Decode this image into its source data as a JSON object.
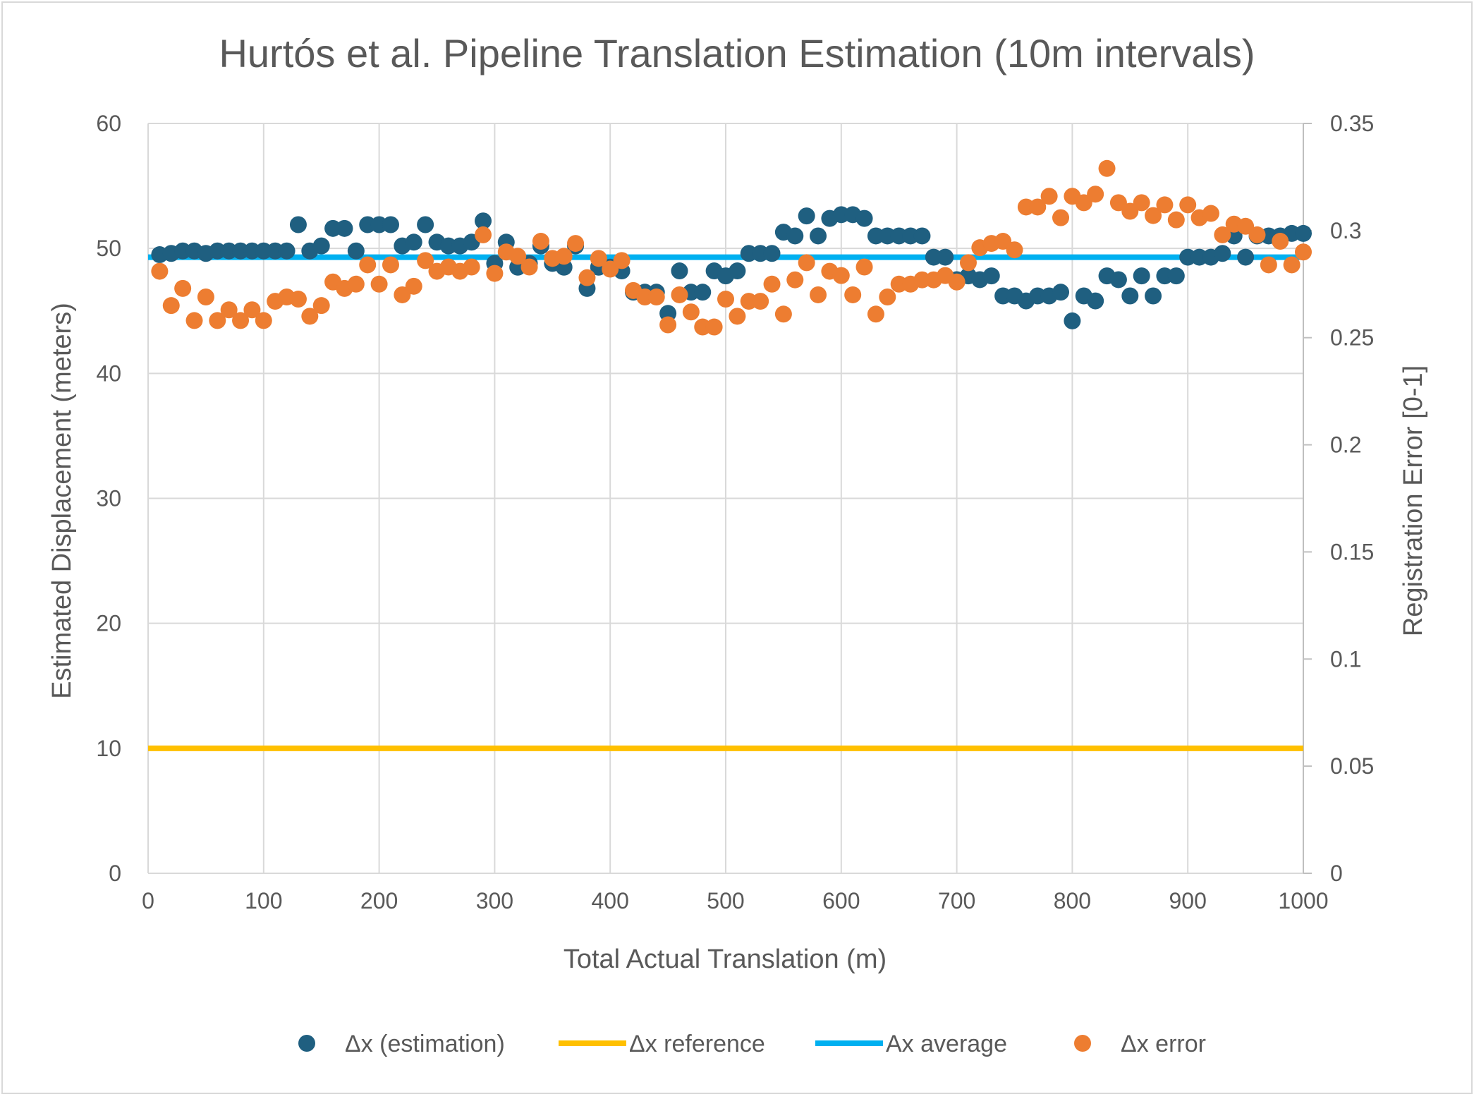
{
  "chart_data": {
    "type": "scatter",
    "title": "Hurtós et al. Pipeline Translation Estimation (10m intervals)",
    "xlabel": "Total Actual Translation (m)",
    "ylabel": "Estimated Displacement (meters)",
    "y2label": "Registration Error [0-1]",
    "xlim": [
      0,
      1000
    ],
    "ylim": [
      0,
      60
    ],
    "y2lim": [
      0,
      0.35
    ],
    "xticks": [
      "0",
      "100",
      "200",
      "300",
      "400",
      "500",
      "600",
      "700",
      "800",
      "900",
      "1000"
    ],
    "yticks": [
      "0",
      "10",
      "20",
      "30",
      "40",
      "50",
      "60"
    ],
    "y2ticks": [
      "0",
      "0.05",
      "0.1",
      "0.15",
      "0.2",
      "0.25",
      "0.3",
      "0.35"
    ],
    "grid": true,
    "legend_position": "bottom",
    "x": [
      10,
      20,
      30,
      40,
      50,
      60,
      70,
      80,
      90,
      100,
      110,
      120,
      130,
      140,
      150,
      160,
      170,
      180,
      190,
      200,
      210,
      220,
      230,
      240,
      250,
      260,
      270,
      280,
      290,
      300,
      310,
      320,
      330,
      340,
      350,
      360,
      370,
      380,
      390,
      400,
      410,
      420,
      430,
      440,
      450,
      460,
      470,
      480,
      490,
      500,
      510,
      520,
      530,
      540,
      550,
      560,
      570,
      580,
      590,
      600,
      610,
      620,
      630,
      640,
      650,
      660,
      670,
      680,
      690,
      700,
      710,
      720,
      730,
      740,
      750,
      760,
      770,
      780,
      790,
      800,
      810,
      820,
      830,
      840,
      850,
      860,
      870,
      880,
      890,
      900,
      910,
      920,
      930,
      940,
      950,
      960,
      970,
      980,
      990,
      1000
    ],
    "series": [
      {
        "name": "Δx (estimation)",
        "kind": "scatter",
        "axis": "left",
        "color": "#1f5f80",
        "values": [
          49.5,
          49.6,
          49.8,
          49.8,
          49.6,
          49.8,
          49.8,
          49.8,
          49.8,
          49.8,
          49.8,
          49.8,
          51.9,
          49.8,
          50.2,
          51.6,
          51.6,
          49.8,
          51.9,
          51.9,
          51.9,
          50.2,
          50.5,
          51.9,
          50.5,
          50.2,
          50.2,
          50.5,
          52.2,
          48.8,
          50.5,
          48.5,
          48.8,
          50.2,
          48.8,
          48.5,
          50.2,
          46.8,
          48.5,
          48.5,
          48.2,
          46.5,
          46.5,
          46.5,
          44.8,
          48.2,
          46.5,
          46.5,
          48.2,
          47.8,
          48.2,
          49.6,
          49.6,
          49.6,
          51.3,
          51.0,
          52.6,
          51.0,
          52.4,
          52.7,
          52.7,
          52.4,
          51.0,
          51.0,
          51.0,
          51.0,
          51.0,
          49.3,
          49.3,
          47.5,
          47.8,
          47.5,
          47.8,
          46.2,
          46.2,
          45.8,
          46.2,
          46.2,
          46.5,
          44.2,
          46.2,
          45.8,
          47.8,
          47.5,
          46.2,
          47.8,
          46.2,
          47.8,
          47.8,
          49.3,
          49.3,
          49.3,
          49.6,
          51.0,
          49.3,
          51.0,
          51.0,
          51.0,
          51.2,
          51.2
        ]
      },
      {
        "name": "Δx reference",
        "kind": "line",
        "axis": "left",
        "color": "#ffc000",
        "value": 10
      },
      {
        "name": "Ax average",
        "kind": "line",
        "axis": "left",
        "color": "#00b0f0",
        "value": 49.3
      },
      {
        "name": "Δx error",
        "kind": "scatter",
        "axis": "right",
        "color": "#ed7d31",
        "values": [
          0.281,
          0.265,
          0.273,
          0.258,
          0.269,
          0.258,
          0.263,
          0.258,
          0.263,
          0.258,
          0.267,
          0.269,
          0.268,
          0.26,
          0.265,
          0.276,
          0.273,
          0.275,
          0.284,
          0.275,
          0.284,
          0.27,
          0.274,
          0.286,
          0.281,
          0.283,
          0.281,
          0.283,
          0.298,
          0.28,
          0.29,
          0.288,
          0.283,
          0.295,
          0.287,
          0.288,
          0.294,
          0.278,
          0.287,
          0.282,
          0.286,
          0.272,
          0.269,
          0.269,
          0.256,
          0.27,
          0.262,
          0.255,
          0.255,
          0.268,
          0.26,
          0.267,
          0.267,
          0.275,
          0.261,
          0.277,
          0.285,
          0.27,
          0.281,
          0.279,
          0.27,
          0.283,
          0.261,
          0.269,
          0.275,
          0.275,
          0.277,
          0.277,
          0.279,
          0.276,
          0.285,
          0.292,
          0.294,
          0.295,
          0.291,
          0.311,
          0.311,
          0.316,
          0.306,
          0.316,
          0.313,
          0.317,
          0.329,
          0.313,
          0.309,
          0.313,
          0.307,
          0.312,
          0.305,
          0.312,
          0.306,
          0.308,
          0.298,
          0.303,
          0.302,
          0.298,
          0.284,
          0.295,
          0.284,
          0.29
        ]
      }
    ]
  }
}
